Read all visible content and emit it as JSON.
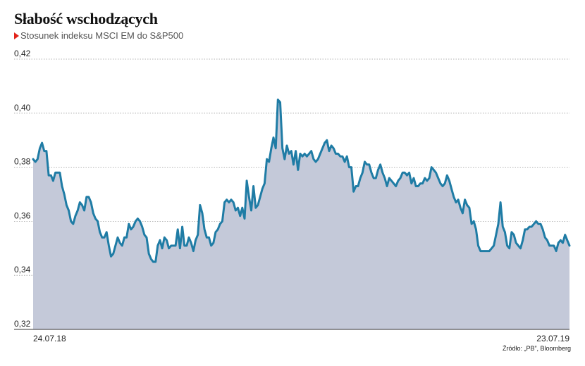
{
  "title": "Słabość wschodzących",
  "subtitle": "Stosunek indeksu MSCI EM do S&P500",
  "source": "Źródło: „PB”, Bloomberg",
  "colors": {
    "line": "#1f7ca5",
    "area": "#c4c9d9",
    "marker": "#e2231a",
    "grid": "#9a9a9a"
  },
  "chart_data": {
    "type": "area",
    "title": "Słabość wschodzących",
    "subtitle": "Stosunek indeksu MSCI EM do S&P500",
    "xlabel": "",
    "ylabel": "",
    "x_tick_labels": [
      "24.07.18",
      "23.07.19"
    ],
    "y_ticks": [
      "0,32",
      "0,34",
      "0,36",
      "0,38",
      "0,40",
      "0,42"
    ],
    "ylim": [
      0.32,
      0.42
    ],
    "grid": "horizontal dotted",
    "series": [
      {
        "values": [
          0.383,
          0.382,
          0.383,
          0.387,
          0.389,
          0.386,
          0.386,
          0.377,
          0.377,
          0.375,
          0.378,
          0.378,
          0.378,
          0.373,
          0.37,
          0.366,
          0.364,
          0.36,
          0.359,
          0.362,
          0.364,
          0.367,
          0.366,
          0.364,
          0.369,
          0.369,
          0.367,
          0.363,
          0.361,
          0.36,
          0.356,
          0.354,
          0.354,
          0.356,
          0.351,
          0.347,
          0.348,
          0.351,
          0.354,
          0.352,
          0.351,
          0.354,
          0.354,
          0.359,
          0.357,
          0.358,
          0.36,
          0.361,
          0.36,
          0.358,
          0.355,
          0.354,
          0.348,
          0.346,
          0.345,
          0.345,
          0.351,
          0.353,
          0.35,
          0.354,
          0.353,
          0.35,
          0.351,
          0.351,
          0.351,
          0.357,
          0.35,
          0.358,
          0.351,
          0.351,
          0.354,
          0.352,
          0.349,
          0.353,
          0.355,
          0.366,
          0.363,
          0.357,
          0.354,
          0.354,
          0.351,
          0.352,
          0.356,
          0.357,
          0.359,
          0.36,
          0.367,
          0.368,
          0.367,
          0.368,
          0.367,
          0.364,
          0.365,
          0.362,
          0.365,
          0.361,
          0.375,
          0.369,
          0.364,
          0.373,
          0.365,
          0.366,
          0.369,
          0.372,
          0.374,
          0.383,
          0.382,
          0.387,
          0.391,
          0.387,
          0.405,
          0.404,
          0.387,
          0.383,
          0.388,
          0.385,
          0.386,
          0.381,
          0.386,
          0.379,
          0.385,
          0.384,
          0.385,
          0.384,
          0.385,
          0.386,
          0.383,
          0.382,
          0.383,
          0.385,
          0.387,
          0.389,
          0.39,
          0.386,
          0.388,
          0.387,
          0.385,
          0.385,
          0.384,
          0.384,
          0.382,
          0.384,
          0.38,
          0.38,
          0.371,
          0.373,
          0.373,
          0.376,
          0.378,
          0.382,
          0.381,
          0.381,
          0.378,
          0.376,
          0.376,
          0.379,
          0.381,
          0.378,
          0.376,
          0.373,
          0.376,
          0.375,
          0.374,
          0.373,
          0.375,
          0.376,
          0.378,
          0.378,
          0.377,
          0.378,
          0.374,
          0.376,
          0.373,
          0.373,
          0.374,
          0.374,
          0.376,
          0.375,
          0.376,
          0.38,
          0.379,
          0.378,
          0.376,
          0.374,
          0.373,
          0.374,
          0.377,
          0.375,
          0.372,
          0.369,
          0.367,
          0.368,
          0.365,
          0.363,
          0.368,
          0.366,
          0.365,
          0.359,
          0.36,
          0.357,
          0.351,
          0.349,
          0.349,
          0.349,
          0.349,
          0.349,
          0.35,
          0.351,
          0.355,
          0.359,
          0.367,
          0.358,
          0.356,
          0.351,
          0.35,
          0.356,
          0.355,
          0.352,
          0.351,
          0.35,
          0.353,
          0.357,
          0.357,
          0.358,
          0.358,
          0.359,
          0.36,
          0.359,
          0.359,
          0.357,
          0.354,
          0.353,
          0.351,
          0.351,
          0.351,
          0.349,
          0.352,
          0.353,
          0.352,
          0.355,
          0.353,
          0.351
        ]
      }
    ]
  }
}
